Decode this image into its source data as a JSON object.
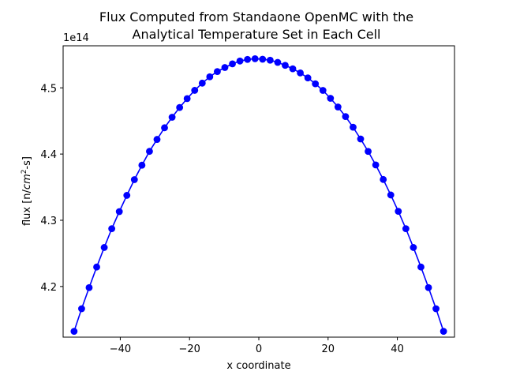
{
  "chart_data": {
    "type": "line",
    "title_line1": "Flux Computed from Standaone OpenMC with the",
    "title_line2": "Analytical Temperature Set in Each Cell",
    "xlabel": "x coordinate",
    "ylabel_prefix": "flux [n/",
    "ylabel_italic": "cm",
    "ylabel_sup": "2",
    "ylabel_suffix": "-s]",
    "y_offset_label": "1e14",
    "xlim": [
      -56.5,
      56.5
    ],
    "ylim": [
      4.1235,
      4.5635
    ],
    "x_ticks": [
      -40,
      -20,
      0,
      20,
      40
    ],
    "x_tick_labels": [
      "−40",
      "−20",
      "0",
      "20",
      "40"
    ],
    "y_ticks": [
      4.2,
      4.3,
      4.4,
      4.5
    ],
    "y_tick_labels": [
      "4.2",
      "4.3",
      "4.4",
      "4.5"
    ],
    "grid": false,
    "series": [
      {
        "color": "#0000ff",
        "marker": "circle",
        "x": [
          -53.34,
          -51.16,
          -48.99,
          -46.81,
          -44.63,
          -42.46,
          -40.28,
          -38.1,
          -35.93,
          -33.75,
          -31.57,
          -29.39,
          -27.22,
          -25.04,
          -22.86,
          -20.69,
          -18.51,
          -16.33,
          -14.16,
          -11.98,
          -9.8,
          -7.62,
          -5.45,
          -3.27,
          -1.09,
          1.09,
          3.27,
          5.45,
          7.62,
          9.8,
          11.98,
          14.16,
          16.33,
          18.51,
          20.69,
          22.86,
          25.04,
          27.22,
          29.39,
          31.57,
          33.75,
          35.93,
          38.1,
          40.28,
          42.46,
          44.63,
          46.81,
          48.99,
          51.16,
          53.34
        ],
        "y": [
          4.1323,
          4.1664,
          4.1983,
          4.2294,
          4.2589,
          4.2873,
          4.3131,
          4.3376,
          4.3614,
          4.3832,
          4.4041,
          4.4221,
          4.4397,
          4.4556,
          4.4703,
          4.4838,
          4.4962,
          4.5071,
          4.5167,
          4.5246,
          4.5307,
          4.5362,
          4.5405,
          4.5429,
          4.544,
          4.5432,
          4.5417,
          4.5385,
          4.534,
          4.5288,
          4.5225,
          4.515,
          4.5061,
          4.4961,
          4.4842,
          4.4711,
          4.4566,
          4.4405,
          4.4228,
          4.404,
          4.3836,
          4.3616,
          4.3382,
          4.3135,
          4.2873,
          4.2589,
          4.2294,
          4.1983,
          4.1664,
          4.1323
        ]
      }
    ]
  }
}
